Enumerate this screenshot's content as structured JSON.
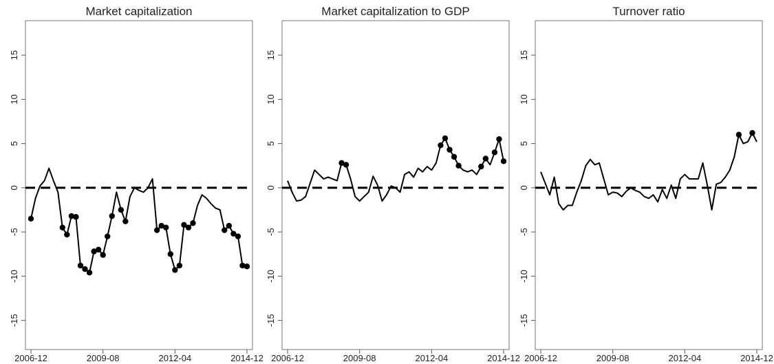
{
  "chart_data": [
    {
      "type": "line",
      "title": "Market capitalization",
      "color": "#000000",
      "x": [
        "2006-12",
        "2007-02",
        "2007-04",
        "2007-06",
        "2007-08",
        "2007-10",
        "2007-12",
        "2008-02",
        "2008-04",
        "2008-06",
        "2008-08",
        "2008-10",
        "2008-12",
        "2009-02",
        "2009-04",
        "2009-06",
        "2009-08",
        "2009-10",
        "2009-12",
        "2010-02",
        "2010-04",
        "2010-06",
        "2010-08",
        "2010-10",
        "2010-12",
        "2011-02",
        "2011-04",
        "2011-06",
        "2011-08",
        "2011-10",
        "2011-12",
        "2012-02",
        "2012-04",
        "2012-06",
        "2012-08",
        "2012-10",
        "2012-12",
        "2013-02",
        "2013-04",
        "2013-06",
        "2013-08",
        "2013-10",
        "2013-12",
        "2014-02",
        "2014-04",
        "2014-06",
        "2014-08",
        "2014-10",
        "2014-12"
      ],
      "values": [
        -3.5,
        -1.2,
        0.2,
        0.8,
        2.2,
        0.8,
        -0.5,
        -4.5,
        -5.3,
        -3.2,
        -3.3,
        -8.8,
        -9.2,
        -9.6,
        -7.2,
        -7.0,
        -7.6,
        -5.5,
        -3.2,
        -0.5,
        -2.5,
        -3.8,
        -1.0,
        0.0,
        -0.3,
        -0.5,
        0.0,
        1.0,
        -4.8,
        -4.3,
        -4.5,
        -7.5,
        -9.3,
        -8.8,
        -4.2,
        -4.5,
        -4.0,
        -2.0,
        -0.8,
        -1.2,
        -1.8,
        -2.3,
        -2.5,
        -4.8,
        -4.3,
        -5.2,
        -5.5,
        -8.8,
        -8.9
      ],
      "markers": [
        true,
        false,
        false,
        false,
        false,
        false,
        false,
        true,
        true,
        true,
        true,
        true,
        true,
        true,
        true,
        true,
        true,
        true,
        true,
        false,
        true,
        true,
        false,
        false,
        false,
        false,
        false,
        false,
        true,
        true,
        true,
        true,
        true,
        true,
        true,
        true,
        true,
        false,
        false,
        false,
        false,
        false,
        false,
        true,
        true,
        true,
        true,
        true,
        true
      ],
      "xlim": [
        "2006-12",
        "2014-12"
      ],
      "xticks": [
        "2006-12",
        "2009-08",
        "2012-04",
        "2014-12"
      ],
      "ylim": [
        -18.3,
        18.9
      ],
      "yticks": [
        -15,
        -10,
        -5,
        0,
        5,
        10,
        15
      ],
      "hline": 0
    },
    {
      "type": "line",
      "title": "Market capitalization to GDP",
      "color": "#000000",
      "x": [
        "2006-12",
        "2007-02",
        "2007-04",
        "2007-06",
        "2007-08",
        "2007-10",
        "2007-12",
        "2008-02",
        "2008-04",
        "2008-06",
        "2008-08",
        "2008-10",
        "2008-12",
        "2009-02",
        "2009-04",
        "2009-06",
        "2009-08",
        "2009-10",
        "2009-12",
        "2010-02",
        "2010-04",
        "2010-06",
        "2010-08",
        "2010-10",
        "2010-12",
        "2011-02",
        "2011-04",
        "2011-06",
        "2011-08",
        "2011-10",
        "2011-12",
        "2012-02",
        "2012-04",
        "2012-06",
        "2012-08",
        "2012-10",
        "2012-12",
        "2013-02",
        "2013-04",
        "2013-06",
        "2013-08",
        "2013-10",
        "2013-12",
        "2014-02",
        "2014-04",
        "2014-06",
        "2014-08",
        "2014-10",
        "2014-12"
      ],
      "values": [
        0.8,
        -0.5,
        -1.5,
        -1.4,
        -1.0,
        0.5,
        2.0,
        1.5,
        1.0,
        1.2,
        1.0,
        0.8,
        2.8,
        2.6,
        1.0,
        -1.0,
        -1.5,
        -1.0,
        -0.5,
        1.3,
        0.3,
        -1.5,
        -0.8,
        0.2,
        0.0,
        -0.5,
        1.5,
        1.8,
        1.2,
        2.2,
        1.8,
        2.4,
        2.0,
        2.8,
        4.8,
        5.6,
        4.3,
        3.5,
        2.5,
        2.0,
        1.8,
        2.0,
        1.5,
        2.4,
        3.3,
        2.6,
        4.0,
        5.5,
        3.0
      ],
      "markers": [
        false,
        false,
        false,
        false,
        false,
        false,
        false,
        false,
        false,
        false,
        false,
        false,
        true,
        true,
        false,
        false,
        false,
        false,
        false,
        false,
        false,
        false,
        false,
        false,
        false,
        false,
        false,
        false,
        false,
        false,
        false,
        false,
        false,
        false,
        true,
        true,
        true,
        true,
        true,
        false,
        false,
        false,
        false,
        true,
        true,
        false,
        true,
        true,
        true
      ],
      "xlim": [
        "2006-12",
        "2014-12"
      ],
      "xticks": [
        "2006-12",
        "2009-08",
        "2012-04",
        "2014-12"
      ],
      "ylim": [
        -18.3,
        18.9
      ],
      "yticks": [
        -15,
        -10,
        -5,
        0,
        5,
        10,
        15
      ],
      "hline": 0
    },
    {
      "type": "line",
      "title": "Turnover ratio",
      "color": "#000000",
      "x": [
        "2006-12",
        "2007-02",
        "2007-04",
        "2007-06",
        "2007-08",
        "2007-10",
        "2007-12",
        "2008-02",
        "2008-04",
        "2008-06",
        "2008-08",
        "2008-10",
        "2008-12",
        "2009-02",
        "2009-04",
        "2009-06",
        "2009-08",
        "2009-10",
        "2009-12",
        "2010-02",
        "2010-04",
        "2010-06",
        "2010-08",
        "2010-10",
        "2010-12",
        "2011-02",
        "2011-04",
        "2011-06",
        "2011-08",
        "2011-10",
        "2011-12",
        "2012-02",
        "2012-04",
        "2012-06",
        "2012-08",
        "2012-10",
        "2012-12",
        "2013-02",
        "2013-04",
        "2013-06",
        "2013-08",
        "2013-10",
        "2013-12",
        "2014-02",
        "2014-04",
        "2014-06",
        "2014-08",
        "2014-10",
        "2014-12"
      ],
      "values": [
        1.8,
        0.5,
        -0.8,
        1.2,
        -1.8,
        -2.5,
        -2.0,
        -2.0,
        -0.5,
        0.8,
        2.5,
        3.2,
        2.6,
        2.8,
        1.0,
        -0.8,
        -0.5,
        -0.6,
        -1.0,
        -0.4,
        0.0,
        -0.3,
        -0.5,
        -1.0,
        -1.2,
        -0.8,
        -1.6,
        -0.2,
        -1.2,
        0.3,
        -1.2,
        1.0,
        1.5,
        1.0,
        1.0,
        1.0,
        2.8,
        0.3,
        -2.5,
        0.4,
        0.6,
        1.2,
        2.0,
        3.5,
        6.0,
        5.0,
        5.2,
        6.2,
        5.2
      ],
      "markers": [
        false,
        false,
        false,
        false,
        false,
        false,
        false,
        false,
        false,
        false,
        false,
        false,
        false,
        false,
        false,
        false,
        false,
        false,
        false,
        false,
        false,
        false,
        false,
        false,
        false,
        false,
        false,
        false,
        false,
        false,
        false,
        false,
        false,
        false,
        false,
        false,
        false,
        false,
        false,
        false,
        false,
        false,
        false,
        false,
        true,
        false,
        false,
        true,
        false
      ],
      "xlim": [
        "2006-12",
        "2014-12"
      ],
      "xticks": [
        "2006-12",
        "2009-08",
        "2012-04",
        "2014-12"
      ],
      "ylim": [
        -18.3,
        18.9
      ],
      "yticks": [
        -15,
        -10,
        -5,
        0,
        5,
        10,
        15
      ],
      "hline": 0
    }
  ]
}
